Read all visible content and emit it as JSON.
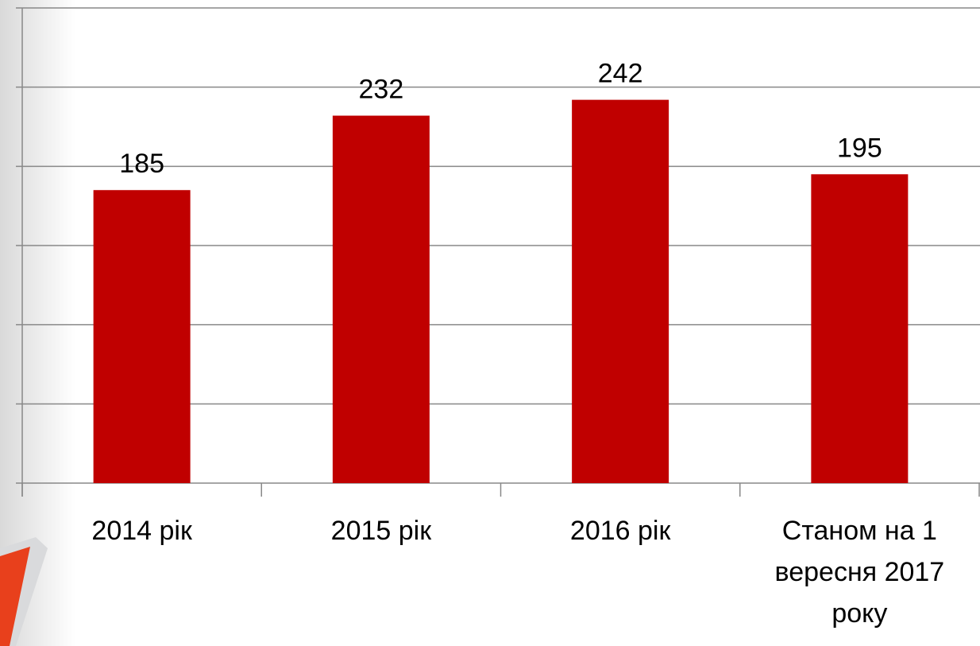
{
  "chart_data": {
    "type": "bar",
    "categories": [
      "2014 рік",
      "2015 рік",
      "2016 рік",
      "Станом на 1 вересня 2017 року"
    ],
    "values": [
      185,
      232,
      242,
      195
    ],
    "color": "#c00000",
    "ylim": [
      0,
      300
    ],
    "yticks": [
      0,
      50,
      100,
      150,
      200,
      250,
      300
    ],
    "grid": true
  }
}
